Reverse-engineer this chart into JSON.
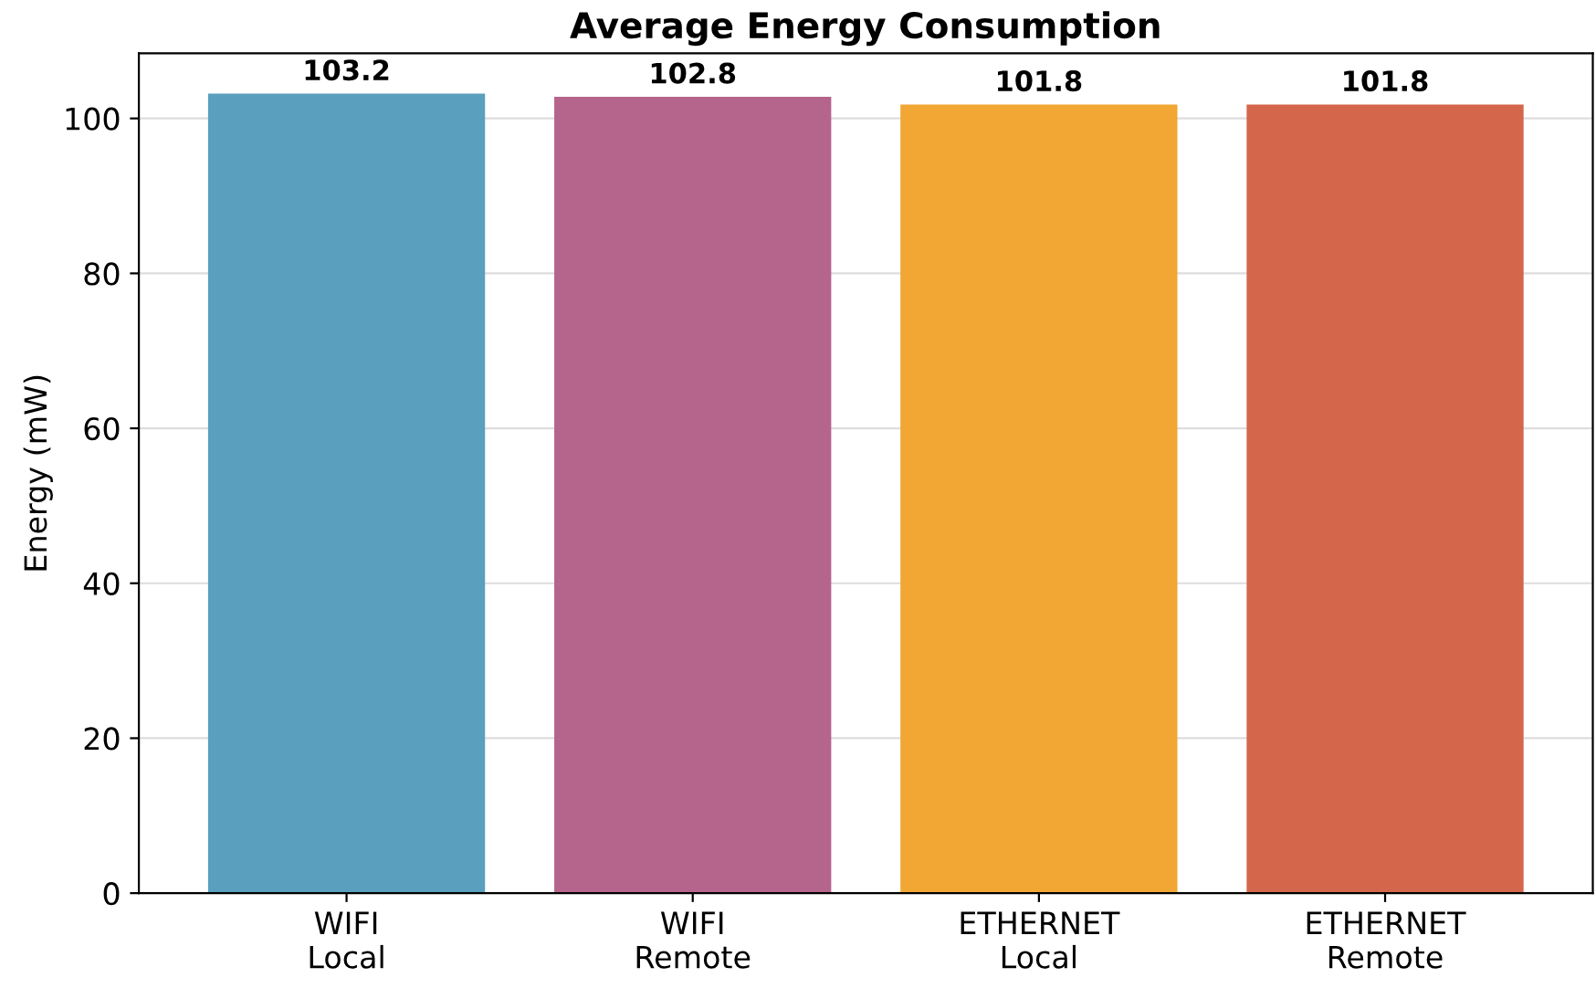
{
  "chart_data": {
    "type": "bar",
    "title": "Average Energy Consumption",
    "ylabel": "Energy (mW)",
    "categories": [
      "WIFI\nLocal",
      "WIFI\nRemote",
      "ETHERNET\nLocal",
      "ETHERNET\nRemote"
    ],
    "values": [
      103.2,
      102.8,
      101.8,
      101.8
    ],
    "colors": [
      "#5a9fbd",
      "#b5648c",
      "#f2a633",
      "#d4674b"
    ],
    "ylim": [
      0,
      108.4
    ],
    "yticks": [
      0,
      20,
      40,
      60,
      80,
      100
    ],
    "grid": "y",
    "data_labels": true
  }
}
